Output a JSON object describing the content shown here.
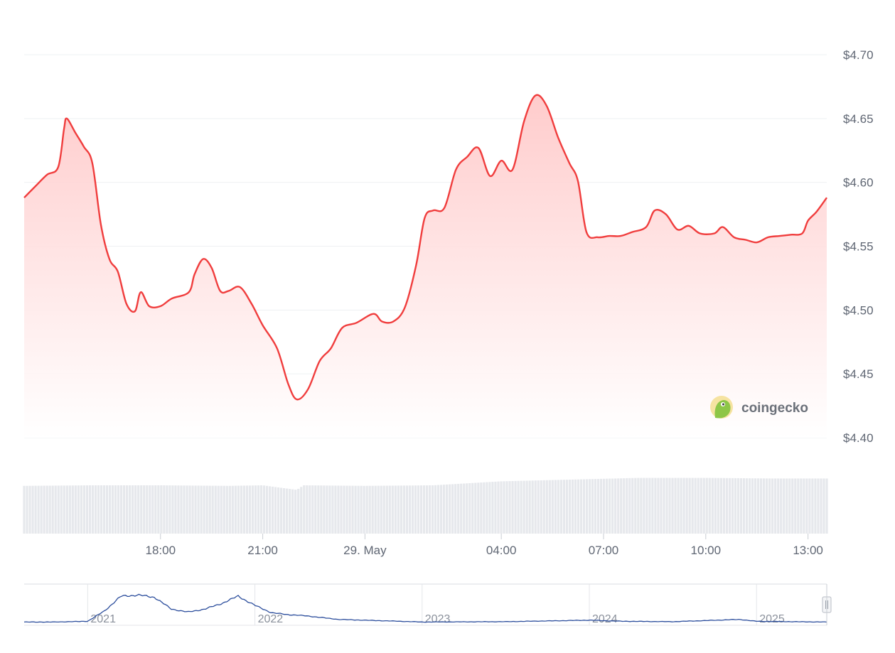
{
  "chart_data": {
    "type": "area",
    "currency": "$",
    "ylim": [
      4.4,
      4.7
    ],
    "y_ticks": [
      "$4.70",
      "$4.65",
      "$4.60",
      "$4.55",
      "$4.50",
      "$4.45",
      "$4.40"
    ],
    "y_tick_values": [
      4.7,
      4.65,
      4.6,
      4.55,
      4.5,
      4.45,
      4.4
    ],
    "x_ticks": [
      "18:00",
      "21:00",
      "29. May",
      "04:00",
      "07:00",
      "10:00",
      "13:00"
    ],
    "x_tick_hours": [
      18,
      21,
      24,
      28,
      31,
      34,
      37
    ],
    "x_range_hours": [
      14.0,
      37.55
    ],
    "price": [
      [
        14.0,
        4.588
      ],
      [
        14.33,
        4.597
      ],
      [
        14.67,
        4.606
      ],
      [
        15.0,
        4.612
      ],
      [
        15.17,
        4.642
      ],
      [
        15.25,
        4.65
      ],
      [
        15.5,
        4.639
      ],
      [
        15.75,
        4.628
      ],
      [
        16.0,
        4.615
      ],
      [
        16.25,
        4.567
      ],
      [
        16.5,
        4.54
      ],
      [
        16.75,
        4.53
      ],
      [
        17.0,
        4.505
      ],
      [
        17.25,
        4.499
      ],
      [
        17.42,
        4.514
      ],
      [
        17.67,
        4.503
      ],
      [
        18.0,
        4.503
      ],
      [
        18.33,
        4.509
      ],
      [
        18.83,
        4.514
      ],
      [
        19.0,
        4.528
      ],
      [
        19.25,
        4.54
      ],
      [
        19.5,
        4.533
      ],
      [
        19.75,
        4.515
      ],
      [
        20.0,
        4.515
      ],
      [
        20.33,
        4.518
      ],
      [
        20.67,
        4.505
      ],
      [
        21.0,
        4.488
      ],
      [
        21.42,
        4.47
      ],
      [
        21.75,
        4.442
      ],
      [
        22.0,
        4.43
      ],
      [
        22.33,
        4.438
      ],
      [
        22.67,
        4.46
      ],
      [
        23.0,
        4.47
      ],
      [
        23.33,
        4.486
      ],
      [
        23.75,
        4.49
      ],
      [
        24.25,
        4.497
      ],
      [
        24.5,
        4.491
      ],
      [
        24.83,
        4.491
      ],
      [
        25.17,
        4.502
      ],
      [
        25.5,
        4.535
      ],
      [
        25.75,
        4.572
      ],
      [
        26.0,
        4.578
      ],
      [
        26.33,
        4.58
      ],
      [
        26.67,
        4.61
      ],
      [
        27.0,
        4.62
      ],
      [
        27.33,
        4.627
      ],
      [
        27.67,
        4.605
      ],
      [
        28.0,
        4.617
      ],
      [
        28.33,
        4.61
      ],
      [
        28.67,
        4.648
      ],
      [
        29.0,
        4.668
      ],
      [
        29.33,
        4.66
      ],
      [
        29.67,
        4.635
      ],
      [
        30.0,
        4.615
      ],
      [
        30.25,
        4.601
      ],
      [
        30.5,
        4.561
      ],
      [
        30.83,
        4.557
      ],
      [
        31.17,
        4.558
      ],
      [
        31.5,
        4.558
      ],
      [
        31.83,
        4.561
      ],
      [
        32.25,
        4.565
      ],
      [
        32.5,
        4.578
      ],
      [
        32.83,
        4.575
      ],
      [
        33.17,
        4.563
      ],
      [
        33.5,
        4.566
      ],
      [
        33.83,
        4.56
      ],
      [
        34.25,
        4.56
      ],
      [
        34.5,
        4.565
      ],
      [
        34.83,
        4.557
      ],
      [
        35.17,
        4.555
      ],
      [
        35.5,
        4.553
      ],
      [
        35.83,
        4.557
      ],
      [
        36.17,
        4.558
      ],
      [
        36.5,
        4.559
      ],
      [
        36.83,
        4.56
      ],
      [
        37.0,
        4.57
      ],
      [
        37.25,
        4.577
      ],
      [
        37.55,
        4.588
      ]
    ],
    "volume": [
      [
        14.0,
        0.84
      ],
      [
        16.0,
        0.85
      ],
      [
        18.0,
        0.85
      ],
      [
        20.0,
        0.84
      ],
      [
        21.0,
        0.85
      ],
      [
        22.0,
        0.77
      ],
      [
        22.2,
        0.85
      ],
      [
        24.0,
        0.84
      ],
      [
        26.0,
        0.85
      ],
      [
        28.0,
        0.92
      ],
      [
        30.0,
        0.95
      ],
      [
        32.0,
        0.98
      ],
      [
        34.0,
        0.98
      ],
      [
        36.0,
        0.97
      ],
      [
        37.55,
        0.97
      ]
    ],
    "navigator": {
      "labels": [
        "2021",
        "2022",
        "2023",
        "2024",
        "2025"
      ],
      "label_years": [
        2021,
        2022,
        2023,
        2024,
        2025
      ],
      "x_range_years": [
        2020.62,
        2025.42
      ],
      "series": [
        [
          2020.62,
          0.05
        ],
        [
          2020.8,
          0.05
        ],
        [
          2021.0,
          0.07
        ],
        [
          2021.1,
          0.35
        ],
        [
          2021.2,
          0.75
        ],
        [
          2021.3,
          0.78
        ],
        [
          2021.4,
          0.72
        ],
        [
          2021.5,
          0.4
        ],
        [
          2021.6,
          0.32
        ],
        [
          2021.7,
          0.4
        ],
        [
          2021.8,
          0.55
        ],
        [
          2021.9,
          0.75
        ],
        [
          2022.0,
          0.5
        ],
        [
          2022.1,
          0.3
        ],
        [
          2022.2,
          0.25
        ],
        [
          2022.3,
          0.22
        ],
        [
          2022.5,
          0.12
        ],
        [
          2022.8,
          0.08
        ],
        [
          2023.0,
          0.05
        ],
        [
          2023.5,
          0.06
        ],
        [
          2024.0,
          0.1
        ],
        [
          2024.2,
          0.07
        ],
        [
          2024.5,
          0.06
        ],
        [
          2024.9,
          0.12
        ],
        [
          2025.0,
          0.07
        ],
        [
          2025.42,
          0.05
        ]
      ]
    }
  },
  "brand": {
    "name": "coingecko"
  },
  "colors": {
    "line": "#f03d3d",
    "area_top": "#ffc9c9",
    "volume": "#e6e8ec",
    "navigator_line": "#2b4d9c",
    "grid": "#eef0f3",
    "logo_bg": "#f6e3a1",
    "logo_fg": "#8dc647"
  },
  "icons": {
    "logo": "gecko-logo-icon",
    "handle": "navigator-handle-icon"
  }
}
